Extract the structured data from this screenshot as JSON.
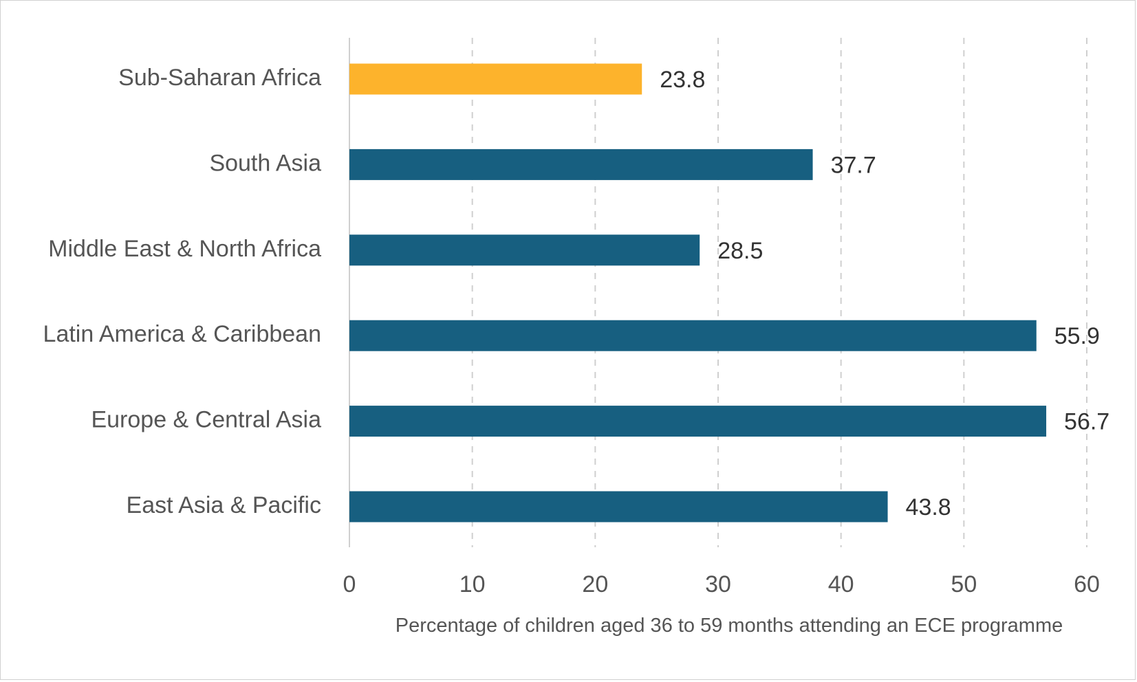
{
  "chart_data": {
    "type": "bar",
    "orientation": "horizontal",
    "categories": [
      "Sub-Saharan Africa",
      "South Asia",
      "Middle East & North Africa",
      "Latin America & Caribbean",
      "Europe & Central Asia",
      "East Asia & Pacific"
    ],
    "values": [
      23.8,
      37.7,
      28.5,
      55.9,
      56.7,
      43.8
    ],
    "value_labels": [
      "23.8",
      "37.7",
      "28.5",
      "55.9",
      "56.7",
      "43.8"
    ],
    "bar_colors": [
      "#FDB32C",
      "#175F80",
      "#175F80",
      "#175F80",
      "#175F80",
      "#175F80"
    ],
    "highlight_color": "#FDB32C",
    "default_color": "#175F80",
    "xlabel": "Percentage of children aged 36 to 59 months attending an ECE programme",
    "ylabel": "",
    "xlim": [
      0,
      60
    ],
    "x_ticks": [
      0,
      10,
      20,
      30,
      40,
      50,
      60
    ],
    "x_tick_labels": [
      "0",
      "10",
      "20",
      "30",
      "40",
      "50",
      "60"
    ],
    "grid": "vertical dashed",
    "legend": "none"
  }
}
